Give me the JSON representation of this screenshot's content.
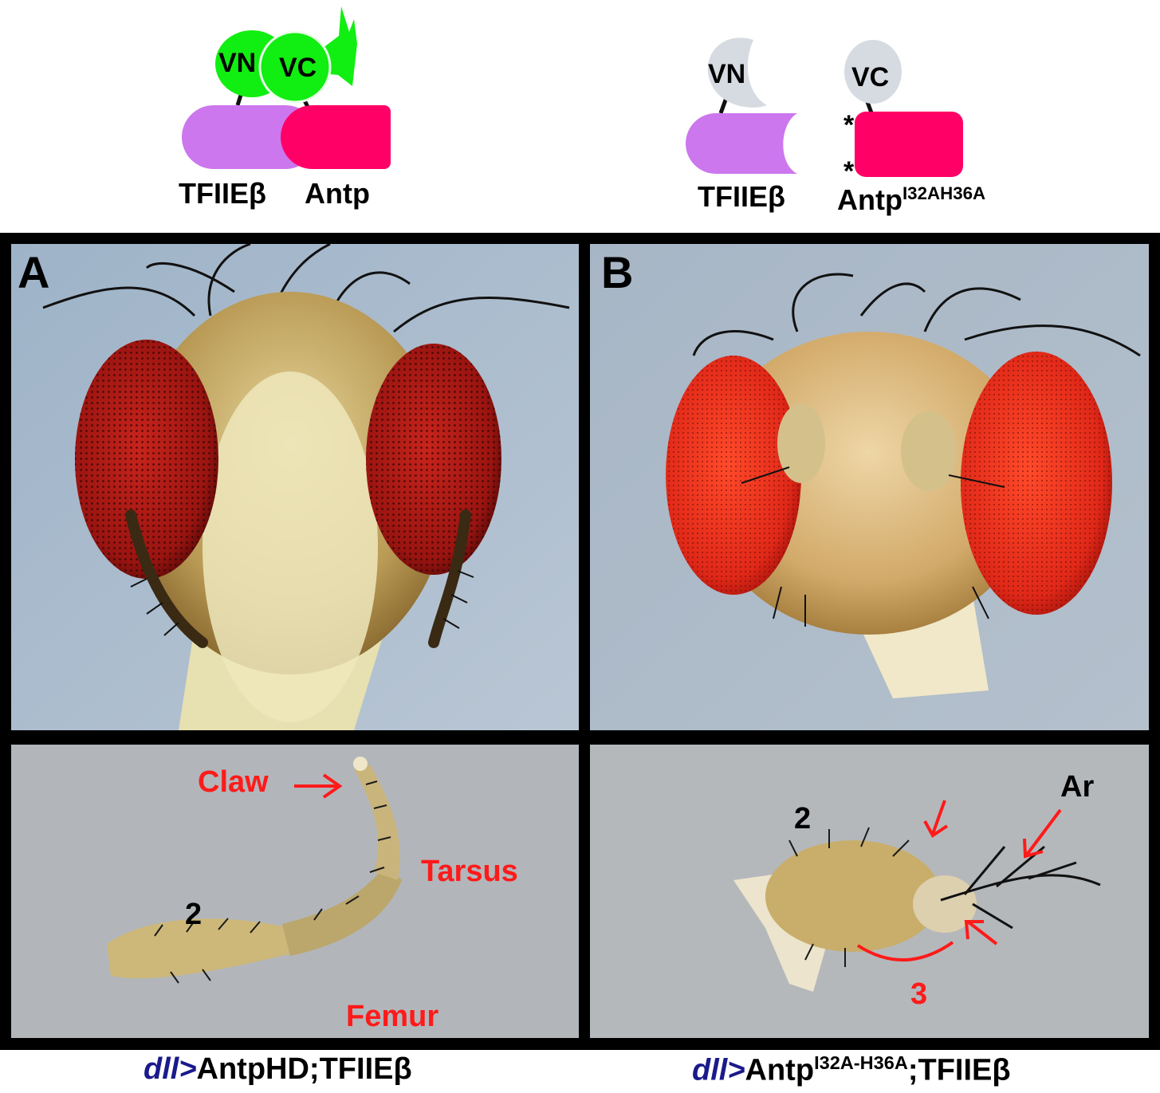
{
  "diagram_left": {
    "vn": "VN",
    "vc": "VC",
    "protein1": "TFIIEβ",
    "protein2": "Antp"
  },
  "diagram_right": {
    "vn": "VN",
    "vc": "VC",
    "protein1": "TFIIEβ",
    "protein2_base": "Antp",
    "protein2_sup": "I32AH36A",
    "mutation_mark_1": "*",
    "mutation_mark_2": "*"
  },
  "panels": {
    "a_letter": "A",
    "b_letter": "B"
  },
  "leg_a": {
    "claw": "Claw",
    "tarsus": "Tarsus",
    "femur": "Femur",
    "segment": "2"
  },
  "leg_b": {
    "segment2": "2",
    "segment3": "3",
    "arista": "Ar"
  },
  "captions": {
    "left_italic": "dll>",
    "left_rest": "AntpHD;TFIIEβ",
    "right_italic": "dll>",
    "right_base": "Antp",
    "right_sup": "I32A-H36A",
    "right_rest": ";TFIIEβ"
  },
  "colors": {
    "venus_green": "#11ee11",
    "venus_grey": "#d6dbe2",
    "tfiieb_purple": "#cc77ee",
    "antp_pink": "#ff0066",
    "annotation_red": "#ff1a1a",
    "caption_blue": "#1a1a8c"
  }
}
